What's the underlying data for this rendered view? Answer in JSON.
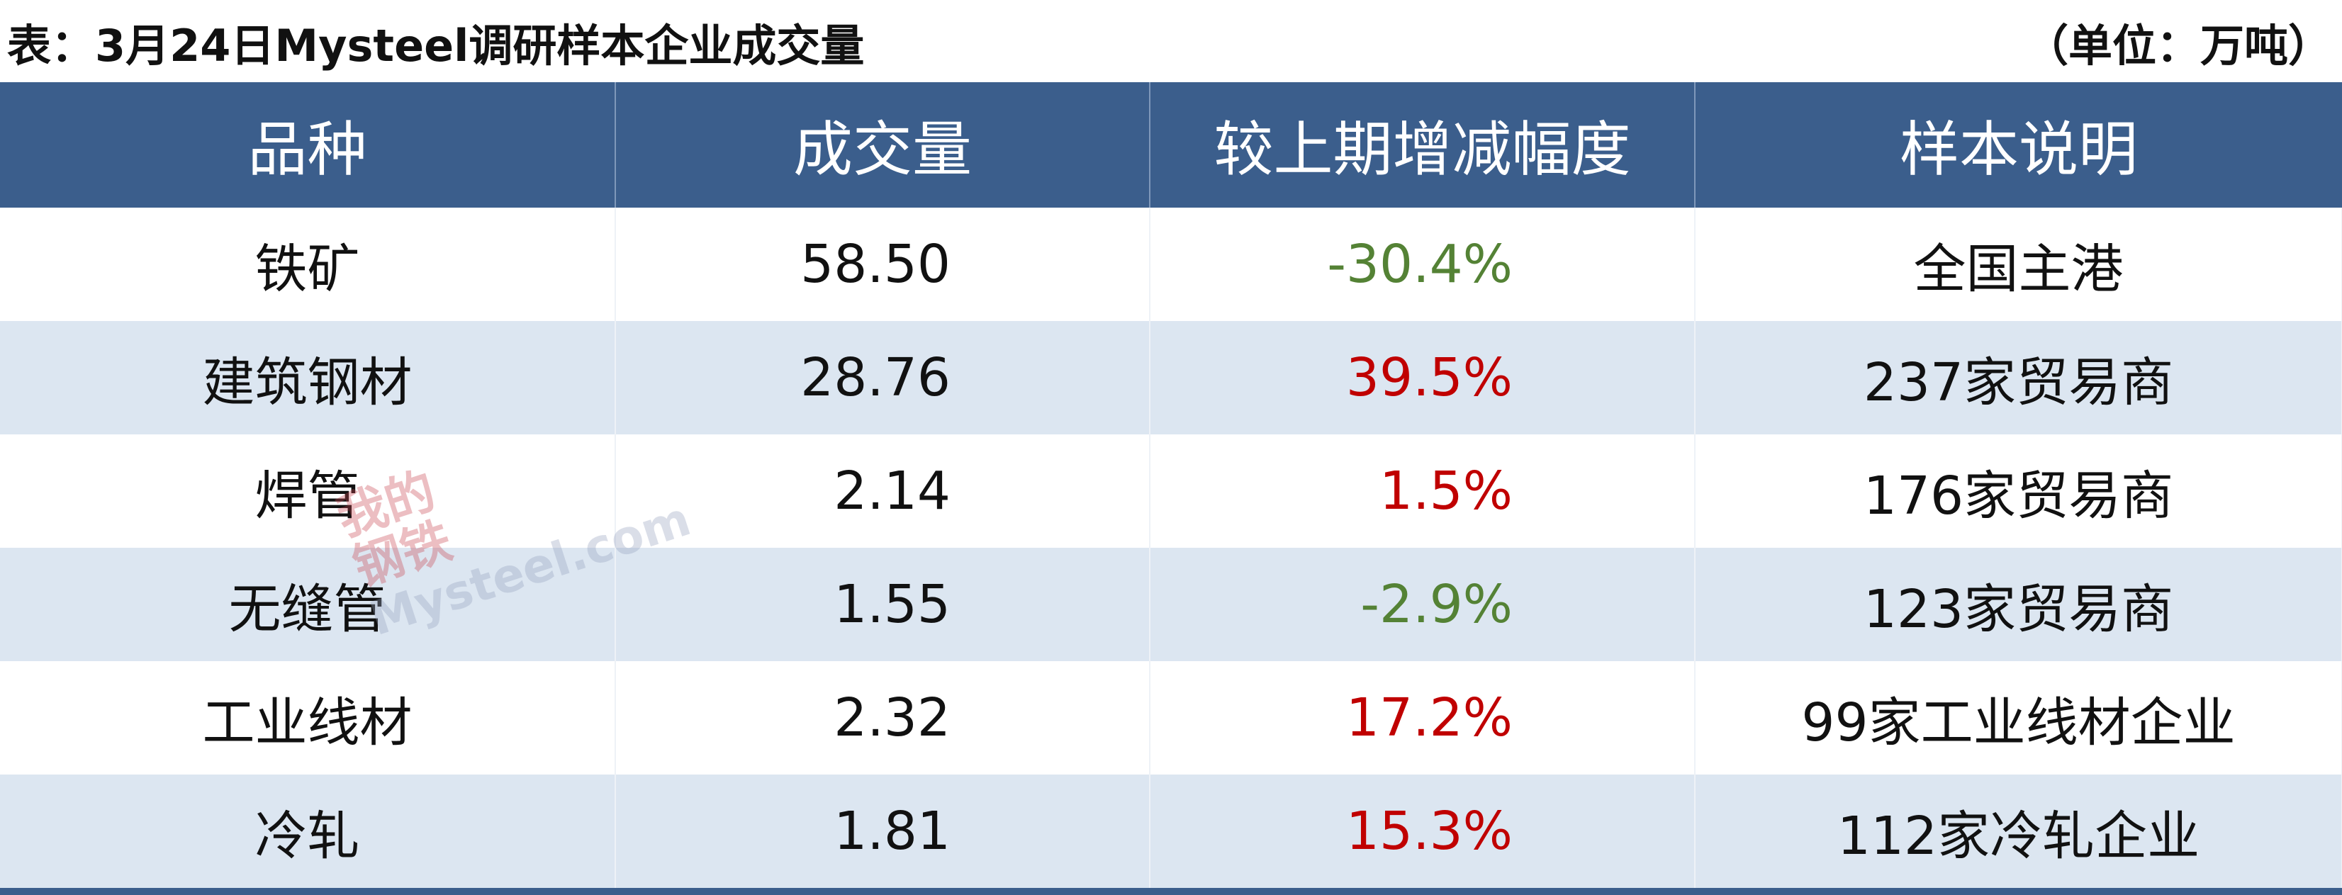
{
  "header": {
    "title": "表：3月24日Mysteel调研样本企业成交量",
    "unit": "（单位：万吨）"
  },
  "table": {
    "columns": [
      "品种",
      "成交量",
      "较上期增减幅度",
      "样本说明"
    ],
    "rows": [
      [
        "铁矿",
        "58.50",
        "-30.4%",
        "全国主港"
      ],
      [
        "建筑钢材",
        "28.76",
        "39.5%",
        "237家贸易商"
      ],
      [
        "焊管",
        "2.14",
        "1.5%",
        "176家贸易商"
      ],
      [
        "无缝管",
        "1.55",
        "-2.9%",
        "123家贸易商"
      ],
      [
        "工业线材",
        "2.32",
        "17.2%",
        "99家工业线材企业"
      ],
      [
        "冷轧",
        "1.81",
        "15.3%",
        "112家冷轧企业"
      ]
    ]
  },
  "watermark": {
    "logo_top": "我的",
    "logo_bottom": "钢铁",
    "site": "Mysteel.com"
  }
}
